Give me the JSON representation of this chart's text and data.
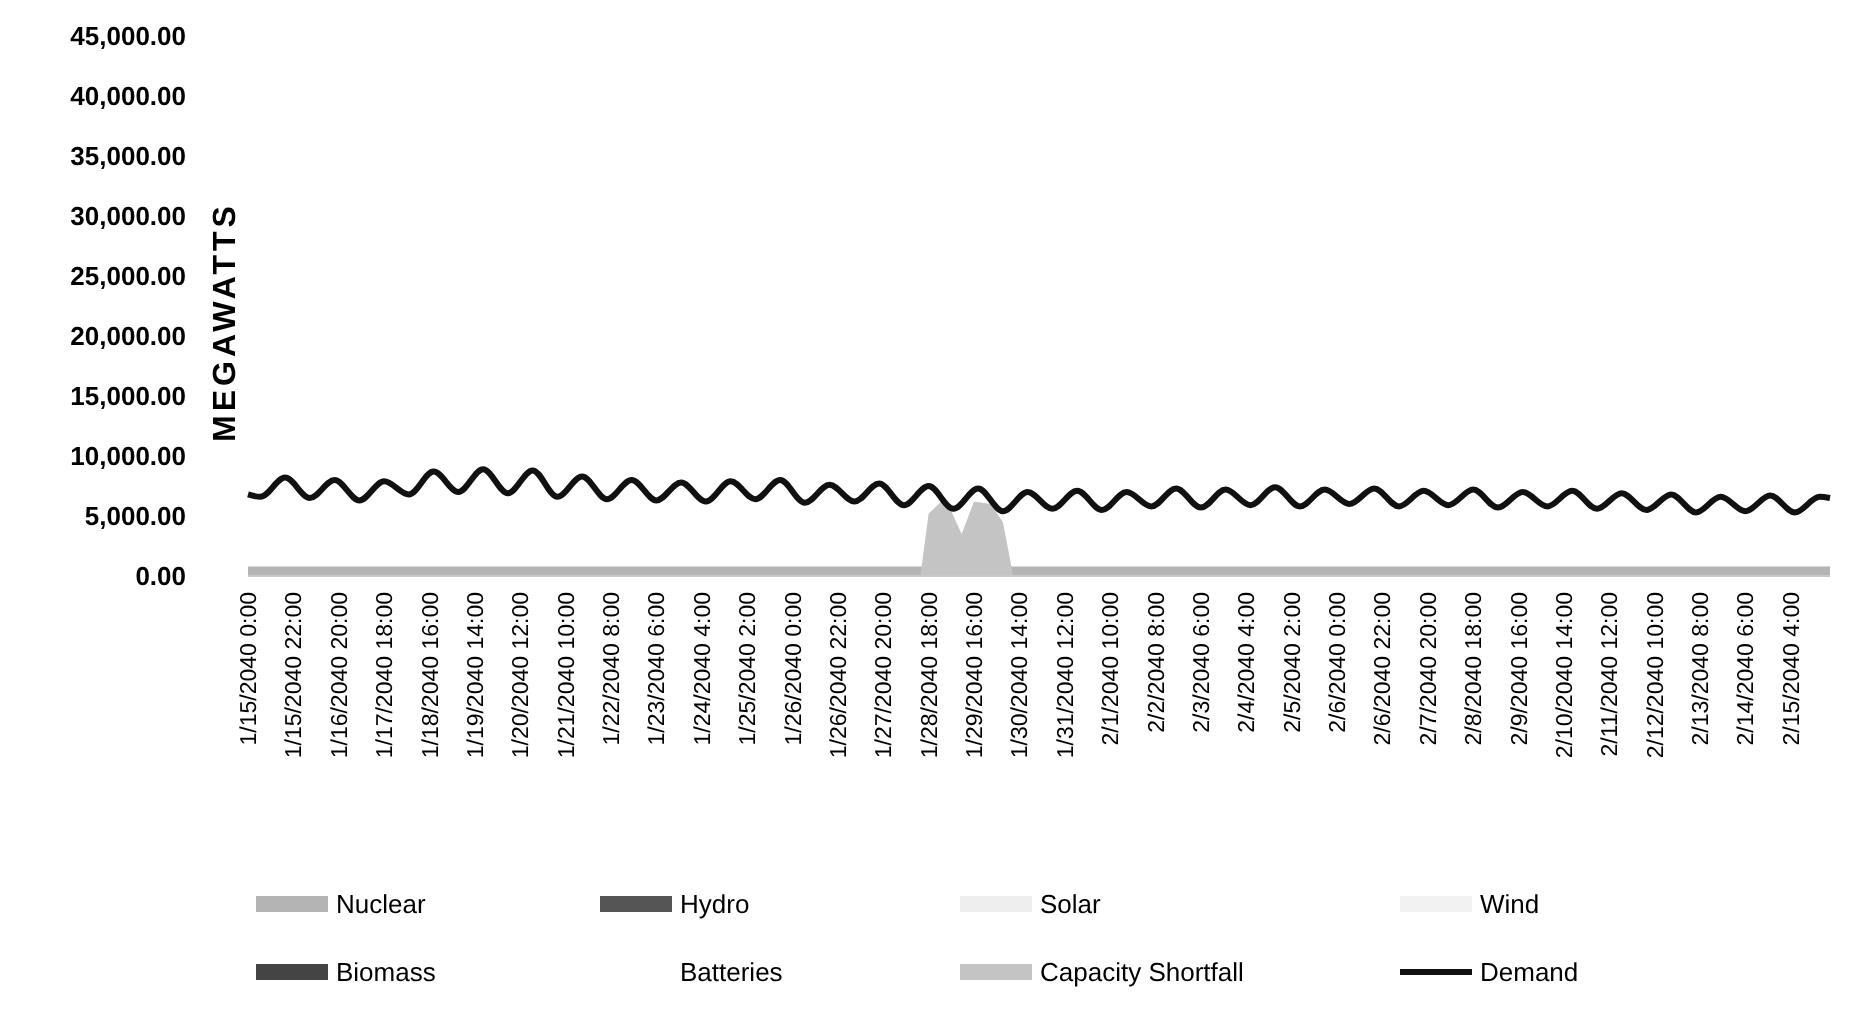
{
  "chart_data": {
    "type": "area",
    "ylabel": "MEGAWATTS",
    "xlim": [
      "2040-01-15T00:00",
      "2040-02-15T23:00"
    ],
    "ylim": [
      0,
      45000
    ],
    "yticks": [
      {
        "value": 0,
        "label": "0.00"
      },
      {
        "value": 5000,
        "label": "5,000.00"
      },
      {
        "value": 10000,
        "label": "10,000.00"
      },
      {
        "value": 15000,
        "label": "15,000.00"
      },
      {
        "value": 20000,
        "label": "20,000.00"
      },
      {
        "value": 25000,
        "label": "25,000.00"
      },
      {
        "value": 30000,
        "label": "30,000.00"
      },
      {
        "value": 35000,
        "label": "35,000.00"
      },
      {
        "value": 40000,
        "label": "40,000.00"
      },
      {
        "value": 45000,
        "label": "45,000.00"
      }
    ],
    "xticks": [
      {
        "value": "2040-01-15T00:00",
        "label": "1/15/2040 0:00"
      },
      {
        "value": "2040-01-15T22:00",
        "label": "1/15/2040 22:00"
      },
      {
        "value": "2040-01-16T20:00",
        "label": "1/16/2040 20:00"
      },
      {
        "value": "2040-01-17T18:00",
        "label": "1/17/2040 18:00"
      },
      {
        "value": "2040-01-18T16:00",
        "label": "1/18/2040 16:00"
      },
      {
        "value": "2040-01-19T14:00",
        "label": "1/19/2040 14:00"
      },
      {
        "value": "2040-01-20T12:00",
        "label": "1/20/2040 12:00"
      },
      {
        "value": "2040-01-21T10:00",
        "label": "1/21/2040 10:00"
      },
      {
        "value": "2040-01-22T08:00",
        "label": "1/22/2040 8:00"
      },
      {
        "value": "2040-01-23T06:00",
        "label": "1/23/2040 6:00"
      },
      {
        "value": "2040-01-24T04:00",
        "label": "1/24/2040 4:00"
      },
      {
        "value": "2040-01-25T02:00",
        "label": "1/25/2040 2:00"
      },
      {
        "value": "2040-01-26T00:00",
        "label": "1/26/2040 0:00"
      },
      {
        "value": "2040-01-26T22:00",
        "label": "1/26/2040 22:00"
      },
      {
        "value": "2040-01-27T20:00",
        "label": "1/27/2040 20:00"
      },
      {
        "value": "2040-01-28T18:00",
        "label": "1/28/2040 18:00"
      },
      {
        "value": "2040-01-29T16:00",
        "label": "1/29/2040 16:00"
      },
      {
        "value": "2040-01-30T14:00",
        "label": "1/30/2040 14:00"
      },
      {
        "value": "2040-01-31T12:00",
        "label": "1/31/2040 12:00"
      },
      {
        "value": "2040-02-01T10:00",
        "label": "2/1/2040 10:00"
      },
      {
        "value": "2040-02-02T08:00",
        "label": "2/2/2040 8:00"
      },
      {
        "value": "2040-02-03T06:00",
        "label": "2/3/2040 6:00"
      },
      {
        "value": "2040-02-04T04:00",
        "label": "2/4/2040 4:00"
      },
      {
        "value": "2040-02-05T02:00",
        "label": "2/5/2040 2:00"
      },
      {
        "value": "2040-02-06T00:00",
        "label": "2/6/2040 0:00"
      },
      {
        "value": "2040-02-06T22:00",
        "label": "2/6/2040 22:00"
      },
      {
        "value": "2040-02-07T20:00",
        "label": "2/7/2040 20:00"
      },
      {
        "value": "2040-02-08T18:00",
        "label": "2/8/2040 18:00"
      },
      {
        "value": "2040-02-09T16:00",
        "label": "2/9/2040 16:00"
      },
      {
        "value": "2040-02-10T14:00",
        "label": "2/10/2040 14:00"
      },
      {
        "value": "2040-02-11T12:00",
        "label": "2/11/2040 12:00"
      },
      {
        "value": "2040-02-12T10:00",
        "label": "2/12/2040 10:00"
      },
      {
        "value": "2040-02-13T08:00",
        "label": "2/13/2040 8:00"
      },
      {
        "value": "2040-02-14T06:00",
        "label": "2/14/2040 6:00"
      },
      {
        "value": "2040-02-15T04:00",
        "label": "2/15/2040 4:00"
      }
    ],
    "legend": "bottom",
    "series": [
      {
        "name": "Nuclear",
        "color": "#b4b4b4",
        "x": [
          "2040-01-15T00:00",
          "2040-02-15T23:00"
        ],
        "values": [
          800,
          800
        ]
      },
      {
        "name": "Hydro",
        "color": "#555555"
      },
      {
        "name": "Solar",
        "color": "#eeeeee"
      },
      {
        "name": "Wind",
        "color": "#f2f2f2"
      },
      {
        "name": "Biomass",
        "color": "#444444"
      },
      {
        "name": "Batteries"
      },
      {
        "name": "Capacity Shortfall",
        "color": "#c4c4c4",
        "x": [
          "2040-01-28T14:00",
          "2040-01-28T18:00",
          "2040-01-29T02:00",
          "2040-01-29T10:00",
          "2040-01-29T16:00",
          "2040-01-30T00:00",
          "2040-01-30T06:00",
          "2040-01-30T11:00"
        ],
        "values": [
          0,
          5200,
          6500,
          3500,
          6200,
          6000,
          4500,
          0
        ]
      },
      {
        "name": "Demand",
        "color": "#111111",
        "type": "line",
        "x": [
          "2040-01-15T00:00",
          "2040-01-15T06:00",
          "2040-01-15T18:00",
          "2040-01-16T06:00",
          "2040-01-16T18:00",
          "2040-01-17T06:00",
          "2040-01-17T18:00",
          "2040-01-18T06:00",
          "2040-01-18T18:00",
          "2040-01-19T06:00",
          "2040-01-19T18:00",
          "2040-01-20T06:00",
          "2040-01-20T18:00",
          "2040-01-21T06:00",
          "2040-01-21T18:00",
          "2040-01-22T06:00",
          "2040-01-22T18:00",
          "2040-01-23T06:00",
          "2040-01-23T18:00",
          "2040-01-24T06:00",
          "2040-01-24T18:00",
          "2040-01-25T06:00",
          "2040-01-25T18:00",
          "2040-01-26T06:00",
          "2040-01-26T18:00",
          "2040-01-27T06:00",
          "2040-01-27T18:00",
          "2040-01-28T06:00",
          "2040-01-28T18:00",
          "2040-01-29T06:00",
          "2040-01-29T18:00",
          "2040-01-30T06:00",
          "2040-01-30T18:00",
          "2040-01-31T06:00",
          "2040-01-31T18:00",
          "2040-02-01T06:00",
          "2040-02-01T18:00",
          "2040-02-02T06:00",
          "2040-02-02T18:00",
          "2040-02-03T06:00",
          "2040-02-03T18:00",
          "2040-02-04T06:00",
          "2040-02-04T18:00",
          "2040-02-05T06:00",
          "2040-02-05T18:00",
          "2040-02-06T06:00",
          "2040-02-06T18:00",
          "2040-02-07T06:00",
          "2040-02-07T18:00",
          "2040-02-08T06:00",
          "2040-02-08T18:00",
          "2040-02-09T06:00",
          "2040-02-09T18:00",
          "2040-02-10T06:00",
          "2040-02-10T18:00",
          "2040-02-11T06:00",
          "2040-02-11T18:00",
          "2040-02-12T06:00",
          "2040-02-12T18:00",
          "2040-02-13T06:00",
          "2040-02-13T18:00",
          "2040-02-14T06:00",
          "2040-02-14T18:00",
          "2040-02-15T06:00",
          "2040-02-15T18:00",
          "2040-02-15T23:00"
        ],
        "values": [
          6800,
          6600,
          8200,
          6500,
          8000,
          6300,
          7900,
          6800,
          8700,
          7000,
          8900,
          6900,
          8800,
          6600,
          8300,
          6400,
          8000,
          6300,
          7800,
          6200,
          7900,
          6400,
          8000,
          6100,
          7600,
          6200,
          7700,
          5900,
          7500,
          5600,
          7300,
          5400,
          7000,
          5600,
          7100,
          5500,
          7000,
          5800,
          7300,
          5700,
          7200,
          5900,
          7400,
          5800,
          7200,
          6000,
          7300,
          5800,
          7100,
          5900,
          7200,
          5700,
          7000,
          5800,
          7100,
          5600,
          6900,
          5500,
          6800,
          5300,
          6600,
          5400,
          6700,
          5300,
          6600,
          6500
        ]
      }
    ]
  }
}
